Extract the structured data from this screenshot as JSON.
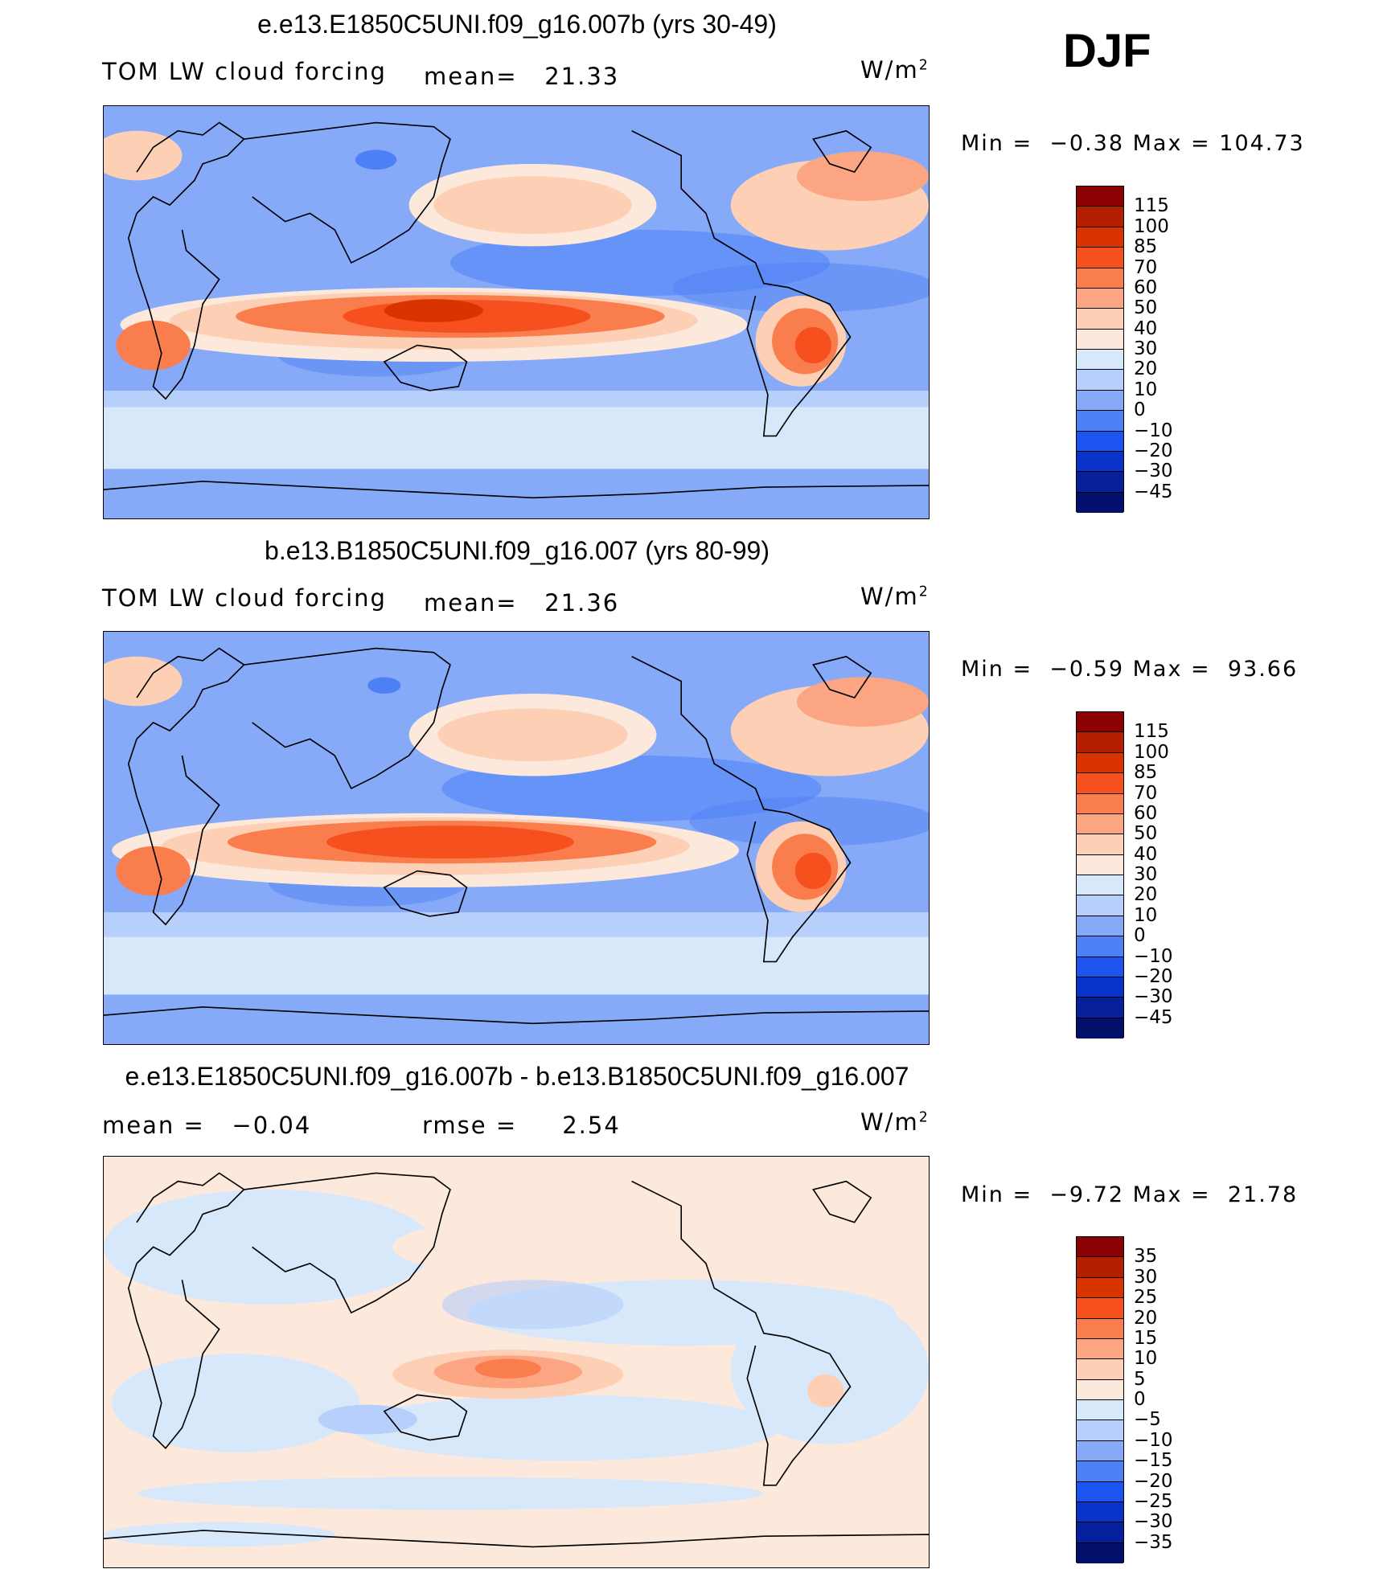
{
  "season": "DJF",
  "units_base": "W/m",
  "units_exp": "2",
  "panels": [
    {
      "title": "e.e13.E1850C5UNI.f09_g16.007b (yrs 30-49)",
      "left_label": "TOM LW cloud forcing",
      "mid_label": "mean=   21.33",
      "min_label": "Min =",
      "min_value": "−0.38",
      "max_label": "Max =",
      "max_value": "104.73",
      "ticks": [
        "115",
        "100",
        "85",
        "70",
        "60",
        "50",
        "40",
        "30",
        "20",
        "10",
        "0",
        "−10",
        "−20",
        "−30",
        "−45"
      ]
    },
    {
      "title": "b.e13.B1850C5UNI.f09_g16.007 (yrs 80-99)",
      "left_label": "TOM LW cloud forcing",
      "mid_label": "mean=   21.36",
      "min_label": "Min =",
      "min_value": "−0.59",
      "max_label": "Max =",
      "max_value": "93.66",
      "ticks": [
        "115",
        "100",
        "85",
        "70",
        "60",
        "50",
        "40",
        "30",
        "20",
        "10",
        "0",
        "−10",
        "−20",
        "−30",
        "−45"
      ]
    },
    {
      "title": "e.e13.E1850C5UNI.f09_g16.007b - b.e13.B1850C5UNI.f09_g16.007",
      "left_label": "mean =   −0.04",
      "mid_label": "rmse =     2.54",
      "min_label": "Min =",
      "min_value": "−9.72",
      "max_label": "Max =",
      "max_value": "21.78",
      "ticks": [
        "35",
        "30",
        "25",
        "20",
        "15",
        "10",
        "5",
        "0",
        "−5",
        "−10",
        "−15",
        "−20",
        "−25",
        "−30",
        "−35"
      ]
    }
  ],
  "colors": {
    "scale": [
      "#8b0000",
      "#b31e00",
      "#d93400",
      "#f5501e",
      "#fa7d4e",
      "#fca582",
      "#fdd0b6",
      "#fde9dc",
      "#d8e8fb",
      "#b6cffb",
      "#86aaf8",
      "#4d7ff5",
      "#1c54f0",
      "#0a34c9",
      "#061f9a",
      "#02106b"
    ]
  }
}
